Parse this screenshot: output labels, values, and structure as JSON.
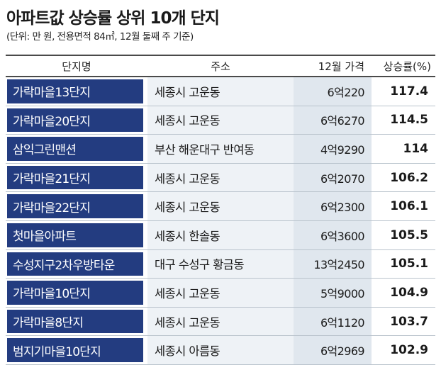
{
  "chart_data": {
    "type": "table",
    "title": "아파트값 상승률 상위 10개 단지",
    "subtitle": "(단위: 만 원, 전용면적 84㎡, 12월 둘째 주 기준)",
    "columns": [
      "단지명",
      "주소",
      "12월 가격",
      "상승률(%)"
    ],
    "rows": [
      {
        "name": "가락마을13단지",
        "address": "세종시 고운동",
        "price": "6억220",
        "rate": "117.4"
      },
      {
        "name": "가락마을20단지",
        "address": "세종시 고운동",
        "price": "6억6270",
        "rate": "114.5"
      },
      {
        "name": "삼익그린맨션",
        "address": "부산 해운대구 반여동",
        "price": "4억9290",
        "rate": "114"
      },
      {
        "name": "가락마을21단지",
        "address": "세종시 고운동",
        "price": "6억2070",
        "rate": "106.2"
      },
      {
        "name": "가락마을22단지",
        "address": "세종시 고운동",
        "price": "6억2300",
        "rate": "106.1"
      },
      {
        "name": "첫마을아파트",
        "address": "세종시 한솔동",
        "price": "6억3600",
        "rate": "105.5"
      },
      {
        "name": "수성지구2차우방타운",
        "address": "대구 수성구 황금동",
        "price": "13억2450",
        "rate": "105.1"
      },
      {
        "name": "가락마을10단지",
        "address": "세종시 고운동",
        "price": "5억9000",
        "rate": "104.9"
      },
      {
        "name": "가락마을8단지",
        "address": "세종시 고운동",
        "price": "6억1120",
        "rate": "103.7"
      },
      {
        "name": "범지기마을10단지",
        "address": "세종시 아름동",
        "price": "6억2969",
        "rate": "102.9"
      }
    ]
  },
  "colors": {
    "name_cell": "#233c80",
    "address_cell": "#eef2f6",
    "price_cell": "#e0e7ee"
  }
}
